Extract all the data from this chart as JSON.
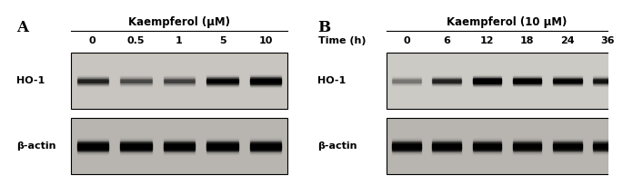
{
  "panel_A": {
    "label": "A",
    "title": "Kaempferol (μM)",
    "dose_labels": [
      "0",
      "0.5",
      "1",
      "5",
      "10"
    ],
    "ho1_intensities": [
      0.3,
      0.18,
      0.2,
      0.58,
      0.88
    ],
    "actin_intensities": [
      0.92,
      0.9,
      0.9,
      0.92,
      0.92
    ]
  },
  "panel_B": {
    "label": "B",
    "title": "Kaempferol (10 μM)",
    "time_label": "Time (h)",
    "time_labels": [
      "0",
      "6",
      "12",
      "18",
      "24",
      "36"
    ],
    "ho1_intensities": [
      0.1,
      0.3,
      0.88,
      0.72,
      0.55,
      0.38
    ],
    "actin_intensities": [
      0.88,
      0.88,
      0.85,
      0.82,
      0.8,
      0.75
    ]
  },
  "bg_color": "#ffffff",
  "gel_bg_A": "#c8c5c0",
  "gel_bg_B": "#cccac5",
  "gel_bg_actin_A": "#b8b5b0",
  "gel_bg_actin_B": "#b8b5b0",
  "label_fontsize": 8,
  "title_fontsize": 8.5,
  "tick_fontsize": 8,
  "panel_label_fontsize": 12
}
